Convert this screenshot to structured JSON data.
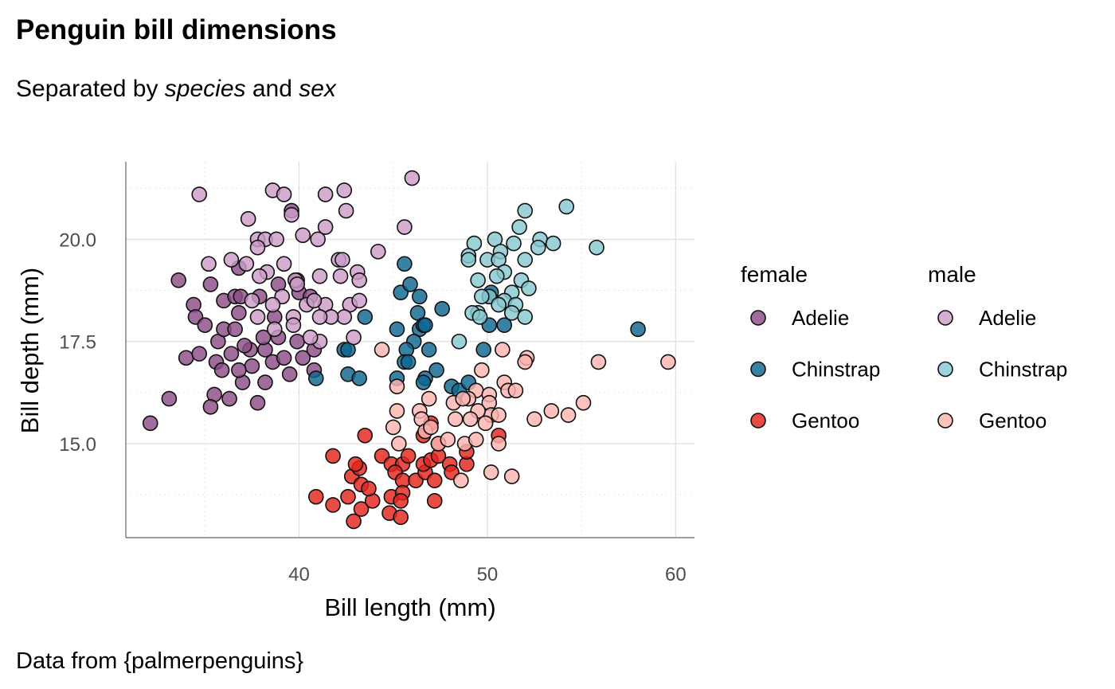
{
  "chart_data": {
    "type": "scatter",
    "title": "Penguin bill dimensions",
    "subtitle": {
      "pre": "Separated by ",
      "em1": "species",
      "mid": " and ",
      "em2": "sex"
    },
    "xlabel": "Bill length (mm)",
    "ylabel": "Bill depth (mm)",
    "caption": "Data from {palmerpenguins}",
    "xlim": [
      30.8,
      61.0
    ],
    "ylim": [
      12.7,
      21.9
    ],
    "xticks": [
      {
        "value": 40,
        "label": "40"
      },
      {
        "value": 50,
        "label": "50"
      },
      {
        "value": 60,
        "label": "60"
      }
    ],
    "yticks": [
      {
        "value": 15,
        "label": "15.0"
      },
      {
        "value": 17.5,
        "label": "17.5"
      },
      {
        "value": 20,
        "label": "20.0"
      }
    ],
    "xminor": [
      35,
      45,
      55
    ],
    "yminor": [
      13.75,
      16.25,
      18.75,
      21.25
    ],
    "grid": true,
    "legend": {
      "placement": "right",
      "groups": [
        {
          "title": "female",
          "entries": [
            "Adelie",
            "Chinstrap",
            "Gentoo"
          ]
        },
        {
          "title": "male",
          "entries": [
            "Adelie",
            "Chinstrap",
            "Gentoo"
          ]
        }
      ]
    },
    "series": [
      {
        "name": "Adelie female",
        "sex": "female",
        "species": "Adelie",
        "color": "#8b4d86",
        "points": [
          [
            33.6,
            19.0
          ],
          [
            32.1,
            15.5
          ],
          [
            33.1,
            16.1
          ],
          [
            34.0,
            17.1
          ],
          [
            34.7,
            17.2
          ],
          [
            34.4,
            18.4
          ],
          [
            34.5,
            18.1
          ],
          [
            35.0,
            17.9
          ],
          [
            35.3,
            18.9
          ],
          [
            36.0,
            18.5
          ],
          [
            36.6,
            18.6
          ],
          [
            36.8,
            19.3
          ],
          [
            35.7,
            17.5
          ],
          [
            35.6,
            17.0
          ],
          [
            35.9,
            16.8
          ],
          [
            36.4,
            17.2
          ],
          [
            36.0,
            17.8
          ],
          [
            36.6,
            17.8
          ],
          [
            35.5,
            16.2
          ],
          [
            35.3,
            15.9
          ],
          [
            36.3,
            16.1
          ],
          [
            37.0,
            16.5
          ],
          [
            37.8,
            16.0
          ],
          [
            38.2,
            16.5
          ],
          [
            37.5,
            16.9
          ],
          [
            36.8,
            16.8
          ],
          [
            37.4,
            17.3
          ],
          [
            38.2,
            17.3
          ],
          [
            38.6,
            17.0
          ],
          [
            39.2,
            17.1
          ],
          [
            39.5,
            16.7
          ],
          [
            40.2,
            17.1
          ],
          [
            40.8,
            16.8
          ],
          [
            38.9,
            17.6
          ],
          [
            38.1,
            17.6
          ],
          [
            36.8,
            18.2
          ],
          [
            36.9,
            18.6
          ],
          [
            37.9,
            18.6
          ],
          [
            38.9,
            18.9
          ],
          [
            39.9,
            19.0
          ],
          [
            40.0,
            18.7
          ],
          [
            40.6,
            18.6
          ],
          [
            39.6,
            20.7
          ],
          [
            40.8,
            17.3
          ],
          [
            39.9,
            17.5
          ],
          [
            38.7,
            18.1
          ],
          [
            37.1,
            17.4
          ]
        ]
      },
      {
        "name": "Chinstrap female",
        "sex": "female",
        "species": "Chinstrap",
        "color": "#0f6690",
        "points": [
          [
            45.6,
            19.4
          ],
          [
            45.4,
            18.7
          ],
          [
            45.9,
            18.9
          ],
          [
            46.3,
            18.2
          ],
          [
            46.4,
            18.6
          ],
          [
            47.6,
            18.3
          ],
          [
            45.2,
            17.8
          ],
          [
            46.4,
            17.8
          ],
          [
            46.6,
            17.9
          ],
          [
            46.7,
            17.9
          ],
          [
            46.1,
            17.5
          ],
          [
            45.7,
            17.3
          ],
          [
            46.9,
            17.3
          ],
          [
            45.6,
            17.0
          ],
          [
            45.8,
            17.0
          ],
          [
            47.3,
            16.8
          ],
          [
            46.7,
            16.6
          ],
          [
            46.6,
            16.5
          ],
          [
            45.2,
            16.6
          ],
          [
            43.5,
            18.1
          ],
          [
            42.4,
            17.3
          ],
          [
            42.6,
            17.3
          ],
          [
            42.6,
            16.7
          ],
          [
            43.2,
            16.6
          ],
          [
            40.9,
            16.6
          ],
          [
            48.1,
            16.4
          ],
          [
            48.5,
            16.3
          ],
          [
            50.1,
            18.6
          ],
          [
            50.2,
            18.7
          ],
          [
            50.1,
            17.9
          ],
          [
            50.9,
            17.9
          ],
          [
            49.8,
            17.3
          ],
          [
            58.0,
            17.8
          ],
          [
            49.0,
            16.5
          ]
        ]
      },
      {
        "name": "Gentoo female",
        "sex": "female",
        "species": "Gentoo",
        "color": "#e3241c",
        "points": [
          [
            41.8,
            14.7
          ],
          [
            43.5,
            15.2
          ],
          [
            40.9,
            13.7
          ],
          [
            41.8,
            13.5
          ],
          [
            42.6,
            13.7
          ],
          [
            42.9,
            13.1
          ],
          [
            43.3,
            13.4
          ],
          [
            43.9,
            13.6
          ],
          [
            44.8,
            13.3
          ],
          [
            45.4,
            13.2
          ],
          [
            42.8,
            14.2
          ],
          [
            43.2,
            14.4
          ],
          [
            43.3,
            14.0
          ],
          [
            43.7,
            13.9
          ],
          [
            44.4,
            14.7
          ],
          [
            44.9,
            14.5
          ],
          [
            45.5,
            14.5
          ],
          [
            45.8,
            14.7
          ],
          [
            45.1,
            14.3
          ],
          [
            45.5,
            14.1
          ],
          [
            44.9,
            13.7
          ],
          [
            45.5,
            13.8
          ],
          [
            45.4,
            13.6
          ],
          [
            46.2,
            14.1
          ],
          [
            46.7,
            14.3
          ],
          [
            47.2,
            14.1
          ],
          [
            47.2,
            13.6
          ],
          [
            46.6,
            14.5
          ],
          [
            47.0,
            14.6
          ],
          [
            47.4,
            14.7
          ],
          [
            48.0,
            14.5
          ],
          [
            47.4,
            15.0
          ],
          [
            47.0,
            15.5
          ],
          [
            46.6,
            15.2
          ],
          [
            48.1,
            14.3
          ],
          [
            48.9,
            14.5
          ],
          [
            48.9,
            14.8
          ],
          [
            50.6,
            15.2
          ],
          [
            43.0,
            14.5
          ]
        ]
      },
      {
        "name": "Adelie male",
        "sex": "male",
        "species": "Adelie",
        "color": "#cc9cc8",
        "points": [
          [
            34.7,
            21.1
          ],
          [
            38.6,
            21.2
          ],
          [
            39.2,
            21.1
          ],
          [
            41.4,
            21.1
          ],
          [
            42.4,
            21.2
          ],
          [
            46.0,
            21.5
          ],
          [
            42.5,
            20.7
          ],
          [
            41.4,
            20.3
          ],
          [
            39.6,
            20.6
          ],
          [
            37.3,
            20.5
          ],
          [
            37.8,
            20.0
          ],
          [
            38.2,
            20.0
          ],
          [
            38.8,
            20.0
          ],
          [
            40.2,
            20.1
          ],
          [
            41.0,
            20.0
          ],
          [
            45.6,
            20.3
          ],
          [
            44.2,
            19.7
          ],
          [
            35.2,
            19.4
          ],
          [
            36.4,
            19.5
          ],
          [
            37.2,
            19.4
          ],
          [
            38.3,
            19.2
          ],
          [
            39.2,
            19.4
          ],
          [
            37.8,
            19.8
          ],
          [
            42.1,
            19.5
          ],
          [
            42.3,
            19.5
          ],
          [
            43.1,
            19.2
          ],
          [
            43.2,
            19.0
          ],
          [
            42.2,
            19.1
          ],
          [
            41.1,
            19.1
          ],
          [
            39.8,
            19.0
          ],
          [
            39.9,
            18.9
          ],
          [
            39.1,
            18.6
          ],
          [
            37.9,
            19.1
          ],
          [
            37.5,
            18.5
          ],
          [
            38.6,
            18.4
          ],
          [
            40.4,
            18.4
          ],
          [
            41.4,
            18.4
          ],
          [
            42.7,
            18.4
          ],
          [
            43.2,
            18.5
          ],
          [
            42.4,
            18.1
          ],
          [
            41.7,
            18.1
          ],
          [
            41.1,
            18.1
          ],
          [
            39.7,
            18.1
          ],
          [
            38.7,
            17.8
          ],
          [
            39.7,
            17.9
          ],
          [
            37.8,
            18.1
          ],
          [
            42.9,
            17.6
          ],
          [
            41.1,
            17.5
          ],
          [
            40.6,
            17.6
          ],
          [
            40.8,
            18.5
          ]
        ]
      },
      {
        "name": "Chinstrap male",
        "sex": "male",
        "species": "Chinstrap",
        "color": "#88c8cf",
        "points": [
          [
            54.2,
            20.8
          ],
          [
            52.0,
            20.7
          ],
          [
            51.7,
            20.3
          ],
          [
            49.3,
            19.9
          ],
          [
            50.4,
            20.0
          ],
          [
            51.4,
            19.9
          ],
          [
            52.8,
            20.0
          ],
          [
            52.7,
            19.8
          ],
          [
            53.5,
            19.9
          ],
          [
            55.8,
            19.8
          ],
          [
            49.0,
            19.6
          ],
          [
            49.0,
            19.5
          ],
          [
            50.0,
            19.5
          ],
          [
            50.7,
            19.7
          ],
          [
            50.6,
            19.5
          ],
          [
            50.9,
            19.2
          ],
          [
            52.0,
            19.5
          ],
          [
            49.5,
            19.0
          ],
          [
            50.5,
            19.1
          ],
          [
            51.8,
            19.0
          ],
          [
            52.2,
            18.8
          ],
          [
            51.3,
            18.7
          ],
          [
            50.9,
            18.5
          ],
          [
            50.1,
            18.6
          ],
          [
            49.7,
            18.6
          ],
          [
            50.6,
            18.4
          ],
          [
            51.5,
            18.4
          ],
          [
            49.5,
            18.2
          ],
          [
            49.2,
            18.2
          ],
          [
            51.3,
            18.2
          ],
          [
            52.0,
            18.1
          ],
          [
            48.5,
            17.5
          ],
          [
            49.6,
            18.1
          ]
        ]
      },
      {
        "name": "Gentoo male",
        "sex": "male",
        "species": "Gentoo",
        "color": "#fdb3b0",
        "points": [
          [
            44.4,
            17.3
          ],
          [
            50.8,
            17.3
          ],
          [
            52.1,
            17.1
          ],
          [
            52.0,
            17.0
          ],
          [
            55.9,
            17.0
          ],
          [
            59.6,
            17.0
          ],
          [
            49.7,
            16.8
          ],
          [
            50.9,
            16.5
          ],
          [
            51.1,
            16.3
          ],
          [
            51.5,
            16.3
          ],
          [
            45.2,
            16.4
          ],
          [
            46.9,
            16.1
          ],
          [
            49.4,
            16.3
          ],
          [
            49.0,
            16.1
          ],
          [
            50.1,
            16.2
          ],
          [
            50.1,
            16.0
          ],
          [
            48.2,
            16.0
          ],
          [
            48.7,
            16.1
          ],
          [
            50.2,
            15.7
          ],
          [
            50.6,
            15.7
          ],
          [
            49.5,
            15.8
          ],
          [
            52.5,
            15.6
          ],
          [
            53.4,
            15.8
          ],
          [
            54.3,
            15.7
          ],
          [
            55.1,
            16.0
          ],
          [
            45.2,
            15.8
          ],
          [
            46.4,
            15.8
          ],
          [
            46.5,
            15.6
          ],
          [
            45.0,
            15.4
          ],
          [
            48.3,
            15.6
          ],
          [
            49.1,
            15.6
          ],
          [
            45.3,
            15.0
          ],
          [
            46.7,
            15.3
          ],
          [
            47.4,
            15.0
          ],
          [
            47.9,
            15.1
          ],
          [
            48.8,
            15.0
          ],
          [
            49.4,
            15.1
          ],
          [
            50.6,
            15.0
          ],
          [
            50.2,
            14.3
          ],
          [
            51.3,
            14.2
          ],
          [
            48.6,
            14.1
          ],
          [
            49.9,
            15.5
          ],
          [
            47.0,
            15.4
          ]
        ]
      }
    ]
  }
}
